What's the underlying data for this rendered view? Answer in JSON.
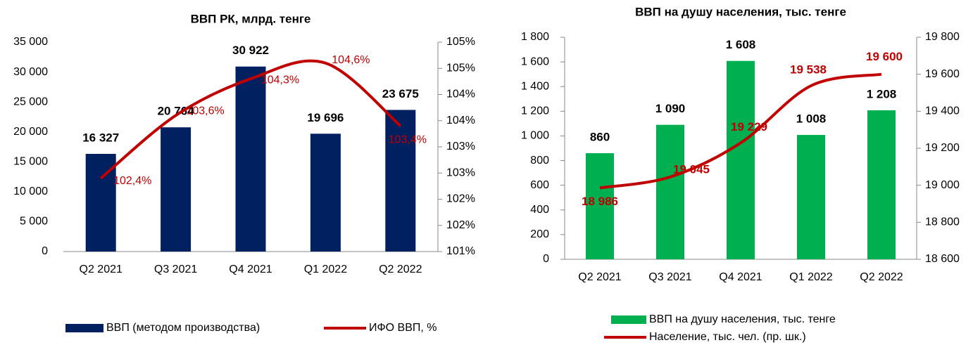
{
  "chart_data": [
    {
      "type": "bar",
      "title": "ВВП РК, млрд. тенге",
      "categories": [
        "Q2 2021",
        "Q3 2021",
        "Q4 2021",
        "Q1 2022",
        "Q2 2022"
      ],
      "series": [
        {
          "name": "ВВП (методом производства)",
          "color": "#002060",
          "values": [
            16327,
            20764,
            30922,
            19696,
            23675
          ],
          "value_labels": [
            "16 327",
            "20 764",
            "30 922",
            "19 696",
            "23 675"
          ]
        },
        {
          "name": "ИФО ВВП, %",
          "color": "#c00000",
          "axis": "y2",
          "values": [
            102.4,
            103.6,
            104.3,
            104.6,
            103.4
          ],
          "value_labels": [
            "102,4%",
            "103,6%",
            "104,3%",
            "104,6%",
            "103,4%"
          ]
        }
      ],
      "ylim": [
        0,
        35000
      ],
      "yticks": [
        0,
        {
          "value": 5000,
          "label": "5 000"
        },
        {
          "value": 10000,
          "label": "10 000"
        },
        {
          "value": 15000,
          "label": "15 000"
        },
        {
          "value": 20000,
          "label": "20 000"
        },
        {
          "value": 25000,
          "label": "25 000"
        },
        {
          "value": 30000,
          "label": "30 000"
        },
        {
          "value": 35000,
          "label": "35 000"
        }
      ],
      "y2lim": [
        101,
        105
      ],
      "y2ticks": [
        {
          "value": 101,
          "label": "101%"
        },
        {
          "value": 101.5,
          "label": "102%"
        },
        {
          "value": 102,
          "label": "102%"
        },
        {
          "value": 102.5,
          "label": "103%"
        },
        {
          "value": 103,
          "label": "103%"
        },
        {
          "value": 103.5,
          "label": "104%"
        },
        {
          "value": 104,
          "label": "104%"
        },
        {
          "value": 104.5,
          "label": "105%"
        },
        {
          "value": 105,
          "label": "105%"
        }
      ],
      "legend": "bottom"
    },
    {
      "type": "bar",
      "title": "ВВП на душу населения, тыс. тенге",
      "categories": [
        "Q2 2021",
        "Q3 2021",
        "Q4 2021",
        "Q1 2022",
        "Q2 2022"
      ],
      "series": [
        {
          "name": "ВВП на душу населения, тыс. тенге",
          "color": "#00b050",
          "values": [
            860,
            1090,
            1608,
            1008,
            1208
          ],
          "value_labels": [
            "860",
            "1 090",
            "1 608",
            "1 008",
            "1 208"
          ]
        },
        {
          "name": "Население, тыс. чел. (пр. шк.)",
          "color": "#c00000",
          "axis": "y2",
          "values": [
            18986,
            19045,
            19229,
            19538,
            19600
          ],
          "value_labels": [
            "18 986",
            "19 045",
            "19 229",
            "19 538",
            "19 600"
          ]
        }
      ],
      "ylim": [
        0,
        1800
      ],
      "yticks": [
        0,
        200,
        400,
        600,
        800,
        {
          "value": 1000,
          "label": "1 000"
        },
        {
          "value": 1200,
          "label": "1 200"
        },
        {
          "value": 1400,
          "label": "1 400"
        },
        {
          "value": 1600,
          "label": "1 600"
        },
        {
          "value": 1800,
          "label": "1 800"
        }
      ],
      "y2lim": [
        18600,
        19800
      ],
      "y2ticks": [
        {
          "value": 18600,
          "label": "18 600"
        },
        {
          "value": 18800,
          "label": "18 800"
        },
        {
          "value": 19000,
          "label": "19 000"
        },
        {
          "value": 19200,
          "label": "19 200"
        },
        {
          "value": 19400,
          "label": "19 400"
        },
        {
          "value": 19600,
          "label": "19 600"
        },
        {
          "value": 19800,
          "label": "19 800"
        }
      ],
      "legend": "bottom"
    }
  ]
}
